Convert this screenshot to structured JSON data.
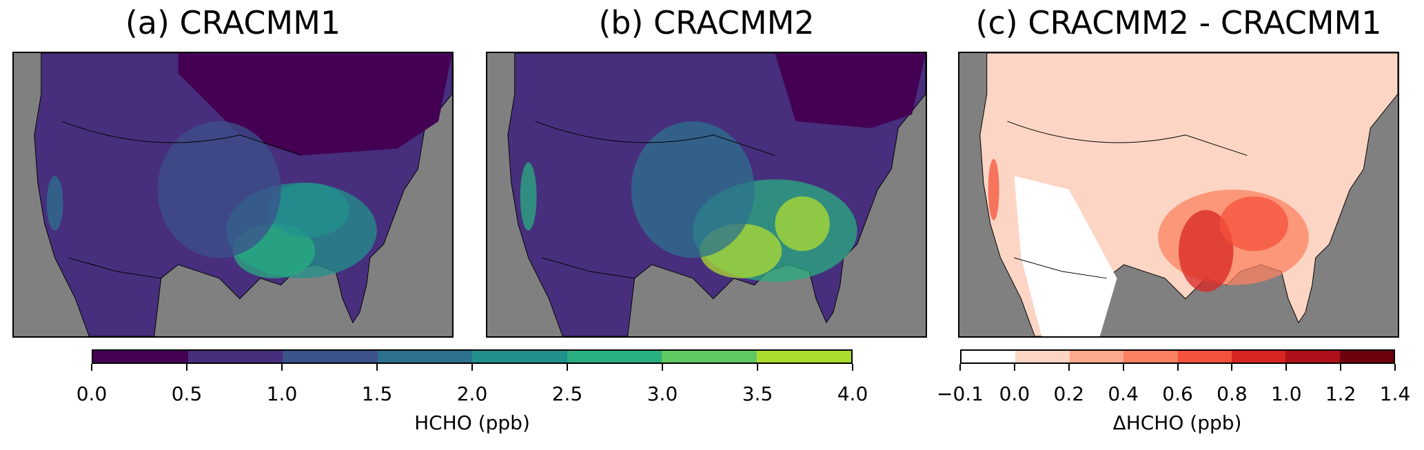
{
  "panels": [
    {
      "title": "(a) CRACMM1",
      "field": "HCHO",
      "colormap": "viridis"
    },
    {
      "title": "(b) CRACMM2",
      "field": "HCHO",
      "colormap": "viridis"
    },
    {
      "title": "(c) CRACMM2 - CRACMM1",
      "field": "ΔHCHO",
      "colormap": "reds"
    }
  ],
  "colorbars": [
    {
      "label": "HCHO (ppb)",
      "ticks": [
        "0.0",
        "0.5",
        "1.0",
        "1.5",
        "2.0",
        "2.5",
        "3.0",
        "3.5",
        "4.0"
      ],
      "colors": [
        "#440154",
        "#472f7d",
        "#3b528b",
        "#2c728e",
        "#21918c",
        "#28ae80",
        "#5ec962",
        "#addc30",
        "#fde725"
      ]
    },
    {
      "label": "ΔHCHO (ppb)",
      "ticks": [
        "−0.1",
        "0.0",
        "0.2",
        "0.4",
        "0.6",
        "0.8",
        "1.0",
        "1.2",
        "1.4"
      ],
      "colors": [
        "#ffffff",
        "#fdd5c4",
        "#fcaa8e",
        "#fc8161",
        "#f4523b",
        "#d72523",
        "#ae1119",
        "#6d010e"
      ]
    }
  ],
  "colors": {
    "ocean": "#808080"
  }
}
